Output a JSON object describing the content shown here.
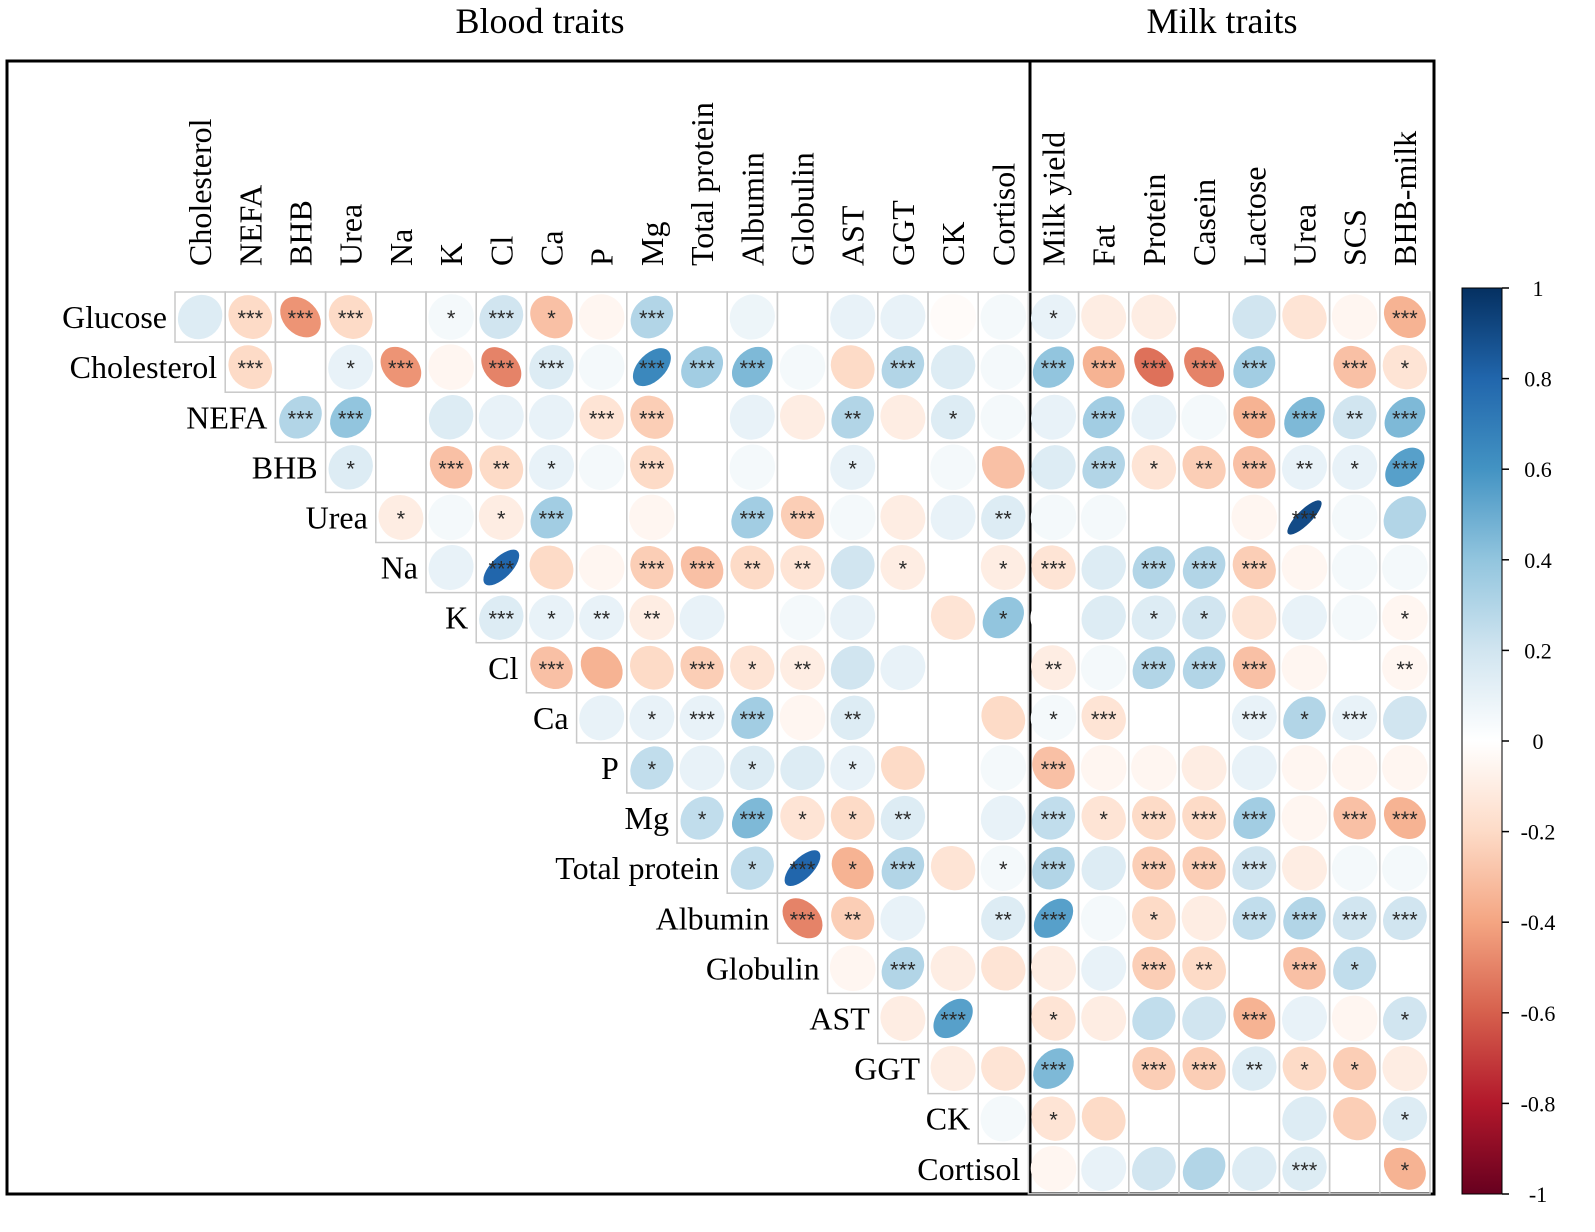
{
  "chart_data": {
    "type": "heatmap",
    "subtype": "correlation-ellipse-matrix",
    "sections": {
      "blood": "Blood traits",
      "milk": "Milk traits"
    },
    "rows": [
      "Glucose",
      "Cholesterol",
      "NEFA",
      "BHB",
      "Urea",
      "Na",
      "K",
      "Cl",
      "Ca",
      "P",
      "Mg",
      "Total protein",
      "Albumin",
      "Globulin",
      "AST",
      "GGT",
      "CK",
      "Cortisol"
    ],
    "columns": [
      "Cholesterol",
      "NEFA",
      "BHB",
      "Urea",
      "Na",
      "K",
      "Cl",
      "Ca",
      "P",
      "Mg",
      "Total protein",
      "Albumin",
      "Globulin",
      "AST",
      "GGT",
      "CK",
      "Cortisol",
      "Milk yield",
      "Fat",
      "Protein",
      "Casein",
      "Lactose",
      "Urea",
      "SCS",
      "BHB-milk"
    ],
    "blood_column_count": 17,
    "values": [
      [
        0.15,
        -0.2,
        -0.45,
        -0.2,
        0,
        0.05,
        0.2,
        -0.3,
        -0.05,
        0.3,
        0,
        0.08,
        0,
        0.1,
        0.1,
        -0.02,
        0.05,
        0.1,
        -0.1,
        -0.1,
        0,
        0.2,
        -0.15,
        -0.05,
        -0.35
      ],
      [
        null,
        -0.2,
        0,
        0.1,
        -0.45,
        -0.05,
        -0.5,
        0.15,
        0.05,
        0.65,
        0.35,
        0.45,
        0.05,
        -0.2,
        0.3,
        0.15,
        0.05,
        0.4,
        -0.35,
        -0.55,
        -0.5,
        0.35,
        0,
        -0.3,
        -0.15
      ],
      [
        null,
        null,
        0.3,
        0.4,
        0,
        0.15,
        0.1,
        0.1,
        -0.15,
        -0.25,
        0,
        0.1,
        -0.1,
        0.3,
        -0.1,
        0.15,
        0.05,
        0.1,
        0.35,
        0.1,
        0.05,
        -0.35,
        0.45,
        0.2,
        0.45
      ],
      [
        null,
        null,
        null,
        0.15,
        0,
        -0.3,
        -0.2,
        0.1,
        0.05,
        -0.2,
        0,
        0.05,
        0,
        0.1,
        0,
        0.05,
        -0.3,
        0.15,
        0.3,
        -0.15,
        -0.25,
        -0.3,
        0.1,
        0.1,
        0.55
      ],
      [
        null,
        null,
        null,
        null,
        -0.1,
        0.05,
        -0.1,
        0.35,
        0,
        -0.05,
        0,
        0.35,
        -0.25,
        0.05,
        -0.1,
        0.1,
        0.15,
        0.05,
        0.05,
        0,
        0,
        -0.05,
        0.9,
        0.05,
        0.3
      ],
      [
        null,
        null,
        null,
        null,
        null,
        0.1,
        0.8,
        -0.2,
        -0.05,
        -0.25,
        -0.3,
        -0.2,
        -0.15,
        0.2,
        -0.1,
        0,
        -0.1,
        -0.15,
        0.15,
        0.3,
        0.3,
        -0.25,
        -0.05,
        0.05,
        0.05
      ],
      [
        null,
        null,
        null,
        null,
        null,
        null,
        0.15,
        0.1,
        0.1,
        -0.1,
        0.1,
        0,
        0.05,
        0.1,
        0,
        -0.15,
        0.4,
        0,
        0.15,
        0.15,
        0.2,
        -0.15,
        0.1,
        0.05,
        -0.05
      ],
      [
        null,
        null,
        null,
        null,
        null,
        null,
        null,
        -0.3,
        -0.35,
        -0.2,
        -0.25,
        -0.15,
        -0.1,
        0.2,
        0.1,
        0,
        0,
        -0.1,
        0.05,
        0.3,
        0.3,
        -0.3,
        -0.05,
        0,
        -0.05
      ],
      [
        null,
        null,
        null,
        null,
        null,
        null,
        null,
        null,
        0.1,
        0.1,
        0.1,
        0.35,
        -0.05,
        0.15,
        0,
        0,
        -0.2,
        0.05,
        -0.15,
        0,
        0,
        0.1,
        0.3,
        0.1,
        0.2
      ],
      [
        null,
        null,
        null,
        null,
        null,
        null,
        null,
        null,
        null,
        0.25,
        0.1,
        0.15,
        0.15,
        0.1,
        -0.2,
        0,
        0.05,
        -0.3,
        -0.05,
        -0.05,
        -0.1,
        0.1,
        -0.05,
        -0.05,
        -0.05
      ],
      [
        null,
        null,
        null,
        null,
        null,
        null,
        null,
        null,
        null,
        null,
        0.25,
        0.45,
        -0.15,
        -0.2,
        0.15,
        0,
        0.1,
        0.25,
        -0.15,
        -0.2,
        -0.2,
        0.35,
        -0.05,
        -0.3,
        -0.35
      ],
      [
        null,
        null,
        null,
        null,
        null,
        null,
        null,
        null,
        null,
        null,
        null,
        0.25,
        0.8,
        -0.35,
        0.3,
        -0.15,
        0.05,
        0.3,
        0.15,
        -0.25,
        -0.25,
        0.2,
        -0.1,
        0.05,
        0.05
      ],
      [
        null,
        null,
        null,
        null,
        null,
        null,
        null,
        null,
        null,
        null,
        null,
        null,
        -0.5,
        -0.25,
        0.1,
        0,
        0.15,
        0.55,
        0.05,
        -0.2,
        -0.1,
        0.25,
        0.3,
        0.2,
        0.2
      ],
      [
        null,
        null,
        null,
        null,
        null,
        null,
        null,
        null,
        null,
        null,
        null,
        null,
        null,
        -0.05,
        0.3,
        -0.1,
        -0.15,
        -0.1,
        0.1,
        -0.25,
        -0.2,
        0,
        -0.3,
        0.25,
        0
      ],
      [
        null,
        null,
        null,
        null,
        null,
        null,
        null,
        null,
        null,
        null,
        null,
        null,
        null,
        null,
        -0.1,
        0.55,
        0,
        -0.15,
        -0.1,
        0.25,
        0.2,
        -0.35,
        0.1,
        -0.05,
        0.2
      ],
      [
        null,
        null,
        null,
        null,
        null,
        null,
        null,
        null,
        null,
        null,
        null,
        null,
        null,
        null,
        null,
        -0.1,
        -0.15,
        0.45,
        0,
        -0.25,
        -0.25,
        0.15,
        -0.2,
        -0.25,
        -0.1
      ],
      [
        null,
        null,
        null,
        null,
        null,
        null,
        null,
        null,
        null,
        null,
        null,
        null,
        null,
        null,
        null,
        null,
        0.05,
        -0.15,
        -0.2,
        0,
        0,
        0,
        0.15,
        -0.25,
        0.15
      ],
      [
        null,
        null,
        null,
        null,
        null,
        null,
        null,
        null,
        null,
        null,
        null,
        null,
        null,
        null,
        null,
        null,
        null,
        -0.05,
        0.1,
        0.2,
        0.3,
        0.15,
        0.15,
        0,
        -0.35
      ]
    ],
    "significance": [
      [
        "",
        "***",
        "***",
        "***",
        "",
        "*",
        "***",
        "*",
        "",
        "***",
        "",
        "",
        "",
        "",
        "",
        "",
        "",
        "*",
        "",
        "",
        "",
        "",
        "",
        "",
        "***"
      ],
      [
        "",
        "***",
        "",
        "*",
        "***",
        "",
        "***",
        "***",
        "",
        "***",
        "***",
        "***",
        "",
        "",
        "***",
        "",
        "",
        "***",
        "***",
        "***",
        "***",
        "***",
        "",
        "***",
        "*"
      ],
      [
        "",
        "",
        "***",
        "***",
        "",
        "",
        "",
        "",
        "***",
        "***",
        "",
        "",
        "",
        "**",
        "",
        "*",
        "",
        "",
        "***",
        "",
        "",
        "***",
        "***",
        "**",
        "***"
      ],
      [
        "",
        "",
        "",
        "*",
        "",
        "***",
        "**",
        "*",
        "",
        "***",
        "",
        "",
        "",
        "*",
        "",
        "",
        "",
        "",
        "***",
        "*",
        "**",
        "***",
        "**",
        "*",
        "***"
      ],
      [
        "",
        "",
        "",
        "",
        "*",
        "",
        "*",
        "***",
        "",
        "",
        "",
        "***",
        "***",
        "",
        "",
        "",
        "**",
        "",
        "",
        "",
        "",
        "",
        "***",
        "",
        ""
      ],
      [
        "",
        "",
        "",
        "",
        "",
        "",
        "***",
        "",
        "",
        "***",
        "***",
        "**",
        "**",
        "",
        "*",
        "",
        "*",
        "***",
        "",
        "***",
        "***",
        "***",
        "",
        "",
        ""
      ],
      [
        "",
        "",
        "",
        "",
        "",
        "",
        "***",
        "*",
        "**",
        "**",
        "",
        "",
        "",
        "",
        "",
        "",
        "*",
        "",
        "",
        "*",
        "*",
        "",
        "",
        "",
        "*"
      ],
      [
        "",
        "",
        "",
        "",
        "",
        "",
        "",
        "***",
        "",
        "",
        "***",
        "*",
        "**",
        "",
        "",
        "",
        "",
        "**",
        "",
        "***",
        "***",
        "***",
        "",
        "",
        "**"
      ],
      [
        "",
        "",
        "",
        "",
        "",
        "",
        "",
        "",
        "",
        "*",
        "***",
        "***",
        "",
        "**",
        "",
        "",
        "",
        "*",
        "***",
        "",
        "",
        "***",
        "*",
        "***",
        ""
      ],
      [
        "",
        "",
        "",
        "",
        "",
        "",
        "",
        "",
        "",
        "*",
        "",
        "*",
        "",
        "*",
        "",
        "",
        "",
        "***",
        "",
        "",
        "",
        "",
        "",
        "",
        ""
      ],
      [
        "",
        "",
        "",
        "",
        "",
        "",
        "",
        "",
        "",
        "",
        "*",
        "***",
        "*",
        "*",
        "**",
        "",
        "",
        "***",
        "*",
        "***",
        "***",
        "***",
        "",
        "***",
        "***"
      ],
      [
        "",
        "",
        "",
        "",
        "",
        "",
        "",
        "",
        "",
        "",
        "",
        "*",
        "***",
        "*",
        "***",
        "",
        "*",
        "***",
        "",
        "***",
        "***",
        "***",
        "",
        "",
        ""
      ],
      [
        "",
        "",
        "",
        "",
        "",
        "",
        "",
        "",
        "",
        "",
        "",
        "",
        "***",
        "**",
        "",
        "",
        "**",
        "***",
        "",
        "*",
        "",
        "***",
        "***",
        "***",
        "***"
      ],
      [
        "",
        "",
        "",
        "",
        "",
        "",
        "",
        "",
        "",
        "",
        "",
        "",
        "",
        "",
        "***",
        "",
        "",
        "",
        "",
        "***",
        "**",
        "",
        "***",
        "*",
        ""
      ],
      [
        "",
        "",
        "",
        "",
        "",
        "",
        "",
        "",
        "",
        "",
        "",
        "",
        "",
        "",
        "",
        "***",
        "",
        "*",
        "",
        "",
        "",
        "***",
        "",
        "",
        "*"
      ],
      [
        "",
        "",
        "",
        "",
        "",
        "",
        "",
        "",
        "",
        "",
        "",
        "",
        "",
        "",
        "",
        "",
        "",
        "***",
        "",
        "***",
        "***",
        "**",
        "*",
        "*",
        ""
      ],
      [
        "",
        "",
        "",
        "",
        "",
        "",
        "",
        "",
        "",
        "",
        "",
        "",
        "",
        "",
        "",
        "",
        "",
        "*",
        "",
        "",
        "",
        "",
        "",
        "",
        "*"
      ],
      [
        "",
        "",
        "",
        "",
        "",
        "",
        "",
        "",
        "",
        "",
        "",
        "",
        "",
        "",
        "",
        "",
        "",
        "",
        "",
        "",
        "",
        "",
        "***",
        "",
        "*"
      ]
    ],
    "colorbar": {
      "min": -1,
      "max": 1,
      "ticks": [
        "1",
        "0.8",
        "0.6",
        "0.4",
        "0.2",
        "0",
        "-0.2",
        "-0.4",
        "-0.6",
        "-0.8",
        "-1"
      ],
      "colors": [
        "#67001f",
        "#b2182b",
        "#d6604d",
        "#f4a582",
        "#fddbc7",
        "#ffffff",
        "#d1e5f0",
        "#92c5de",
        "#4393c3",
        "#2166ac",
        "#053061"
      ]
    }
  }
}
